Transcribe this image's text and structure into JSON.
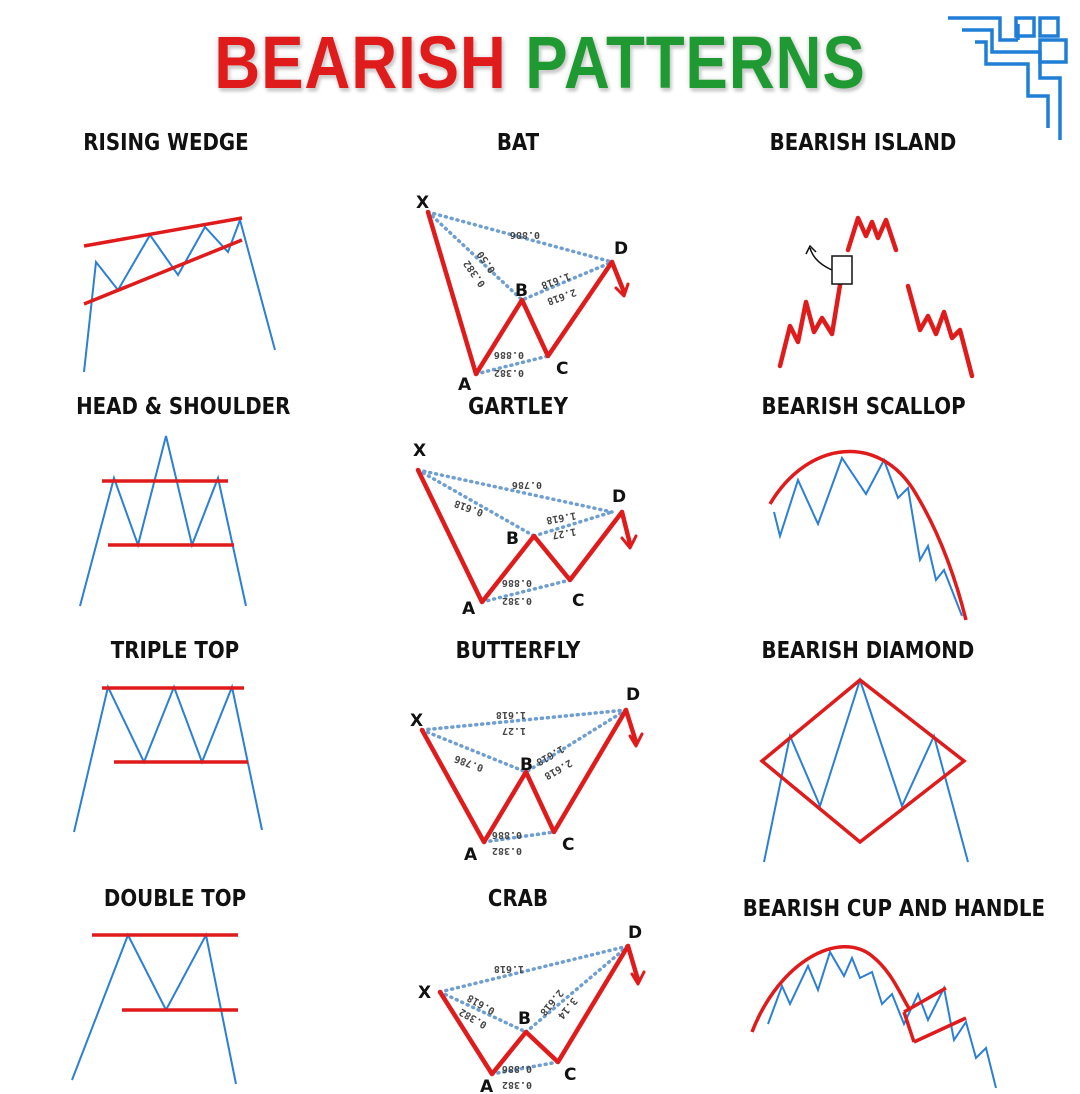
{
  "title": {
    "word1": "BEARISH",
    "word2": "PATTERNS",
    "color1": "#e01b1b",
    "color2": "#1f9a32"
  },
  "patterns": [
    {
      "label": "RISING WEDGE"
    },
    {
      "label": "BAT",
      "points": [
        "X",
        "A",
        "B",
        "C",
        "D"
      ],
      "ratios": [
        "0.886",
        "0.50",
        "0.382",
        "0.886",
        "0.382",
        "1.618",
        "2.618"
      ]
    },
    {
      "label": "BEARISH ISLAND"
    },
    {
      "label": "HEAD & SHOULDER"
    },
    {
      "label": "GARTLEY",
      "points": [
        "X",
        "A",
        "B",
        "C",
        "D"
      ],
      "ratios": [
        "0.786",
        "0.618",
        "0.886",
        "0.382",
        "1.27",
        "1.618"
      ]
    },
    {
      "label": "BEARISH SCALLOP"
    },
    {
      "label": "TRIPLE TOP"
    },
    {
      "label": "BUTTERFLY",
      "points": [
        "X",
        "A",
        "B",
        "C",
        "D"
      ],
      "ratios": [
        "1.618",
        "1.27",
        "0.786",
        "0.886",
        "0.382",
        "1.618",
        "2.618"
      ]
    },
    {
      "label": "BEARISH DIAMOND"
    },
    {
      "label": "DOUBLE TOP"
    },
    {
      "label": "CRAB",
      "points": [
        "X",
        "A",
        "B",
        "C",
        "D"
      ],
      "ratios": [
        "1.618",
        "0.618",
        "0.382",
        "0.886",
        "0.382",
        "2.618",
        "3.14"
      ]
    },
    {
      "label": "BEARISH CUP AND HANDLE"
    }
  ],
  "colors": {
    "line": "#2b7fd4",
    "accent": "#e01b1b",
    "dotted": "#6f9fd0"
  },
  "logo_icon": "circuit-logo-icon"
}
